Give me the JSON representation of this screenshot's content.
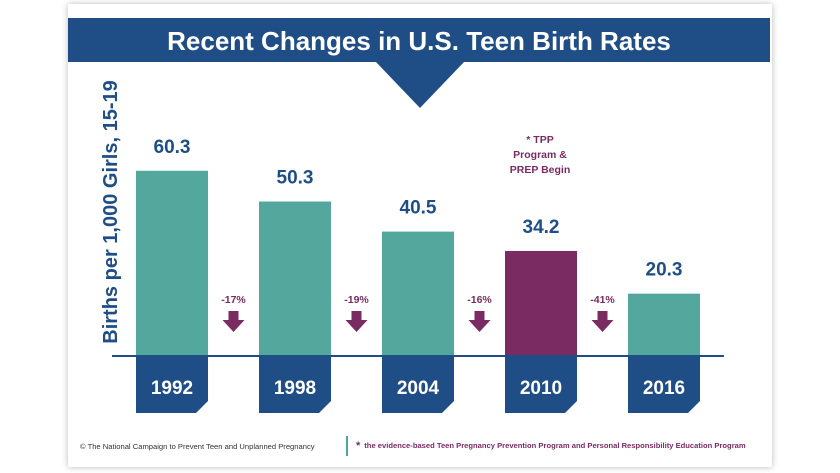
{
  "chart_data": {
    "type": "bar",
    "title": "Recent Changes in U.S. Teen Birth Rates",
    "ylabel": "Births per 1,000 Girls, 15-19",
    "xlabel": "",
    "categories": [
      "1992",
      "1998",
      "2004",
      "2010",
      "2016"
    ],
    "values": [
      60.3,
      50.3,
      40.5,
      34.2,
      20.3
    ],
    "value_labels": [
      "60.3",
      "50.3",
      "40.5",
      "34.2",
      "20.3"
    ],
    "changes": [
      "-17%",
      "-19%",
      "-16%",
      "-41%"
    ],
    "ylim": [
      0,
      70
    ],
    "grid": false,
    "legend": "none",
    "annotation": "* TPP Program & PREP Begin",
    "highlight_index": 3
  },
  "colors": {
    "navy": "#1f4e86",
    "teal": "#4fa59a",
    "purple": "#7a2c62",
    "bar": "#54a79d",
    "highlight": "#7a2c62"
  },
  "footer": {
    "credit": "© The National Campaign to Prevent Teen and Unplanned Pregnancy",
    "footnote_star": "*",
    "footnote": "the evidence-based Teen Pregnancy Prevention Program and Personal Responsibility Education Program"
  }
}
